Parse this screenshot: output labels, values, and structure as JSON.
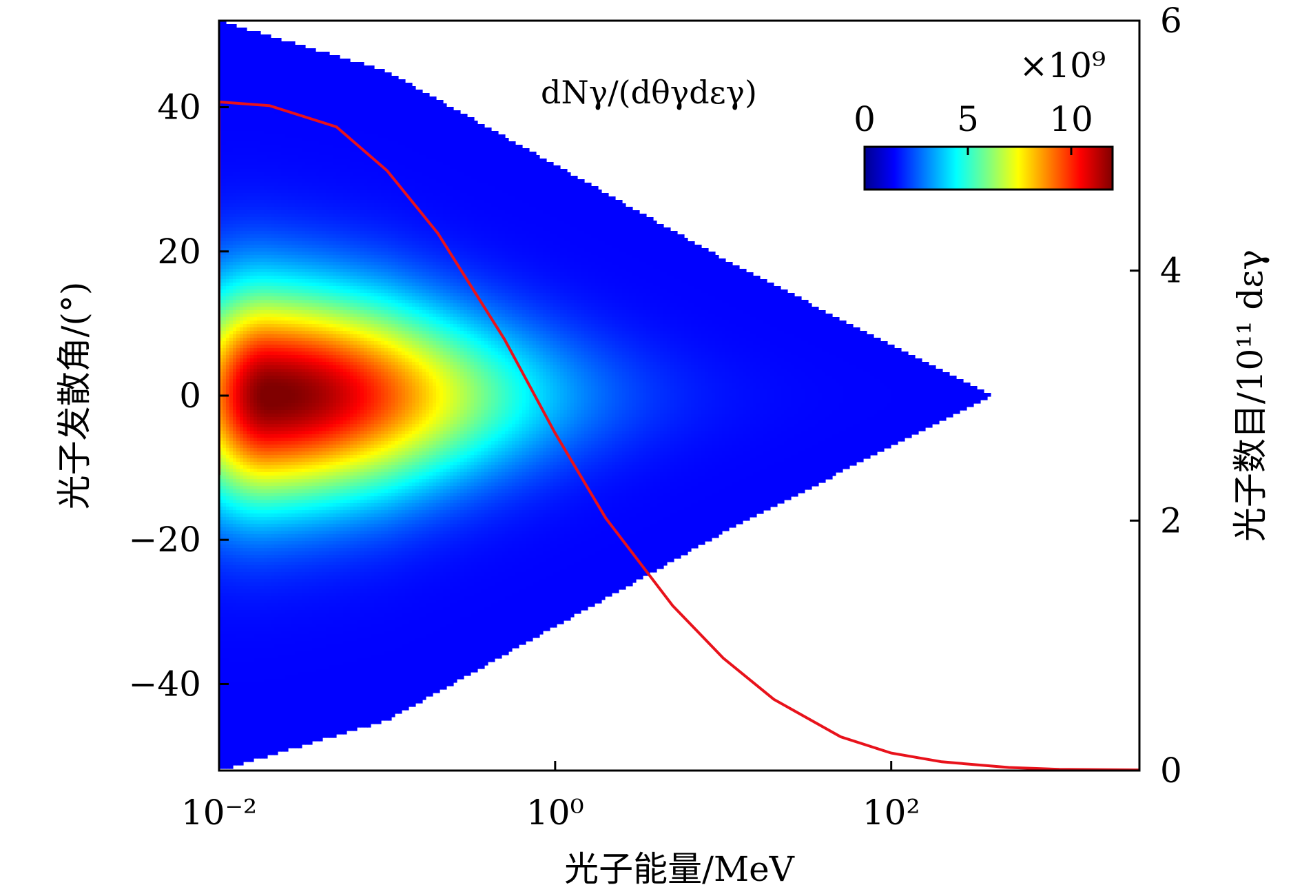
{
  "chart_data": {
    "type": "heatmap",
    "annotation": "dNγ/(dθγdεγ)",
    "xlabel": "光子能量/MeV",
    "ylabel_left": "光子发散角/(°)",
    "ylabel_right": "光子数目/10¹¹ dεγ",
    "x_scale": "log",
    "x_range": [
      0.01,
      3000
    ],
    "x_ticks": [
      {
        "value": 0.01,
        "label": "10⁻²"
      },
      {
        "value": 1,
        "label": "10⁰"
      },
      {
        "value": 100,
        "label": "10²"
      }
    ],
    "y_left_range": [
      -52,
      52
    ],
    "y_left_ticks": [
      "40",
      "20",
      "0",
      "−20",
      "−40"
    ],
    "y_left_tick_values": [
      40,
      20,
      0,
      -20,
      -40
    ],
    "y_right_range": [
      0,
      6
    ],
    "y_right_ticks": [
      "6",
      "4",
      "2",
      "0"
    ],
    "y_right_tick_values": [
      6,
      4,
      2,
      0
    ],
    "colorbar": {
      "min": 0,
      "max": 12,
      "ticks": [
        "0",
        "5",
        "10"
      ],
      "tick_values": [
        0,
        5,
        10
      ],
      "multiplier": "×10⁹",
      "colormap": "jet"
    },
    "heatmap": {
      "envelope_half_angle_deg_at_x": [
        {
          "x": 0.01,
          "y": 52
        },
        {
          "x": 0.1,
          "y": 45
        },
        {
          "x": 1,
          "y": 32
        },
        {
          "x": 10,
          "y": 19
        },
        {
          "x": 100,
          "y": 7
        },
        {
          "x": 400,
          "y": 0
        }
      ],
      "peak_value": 11.5,
      "peak_location": {
        "x": 0.02,
        "y": 0
      }
    },
    "series": [
      {
        "type": "line",
        "axis": "right",
        "color": "#e8121b",
        "x": [
          0.01,
          0.02,
          0.05,
          0.1,
          0.2,
          0.5,
          1,
          2,
          5,
          10,
          20,
          50,
          100,
          200,
          500,
          1000,
          3000
        ],
        "y": [
          5.35,
          5.32,
          5.15,
          4.8,
          4.3,
          3.45,
          2.7,
          2.02,
          1.32,
          0.9,
          0.57,
          0.27,
          0.14,
          0.07,
          0.025,
          0.01,
          0.005
        ]
      }
    ],
    "grid": false
  }
}
